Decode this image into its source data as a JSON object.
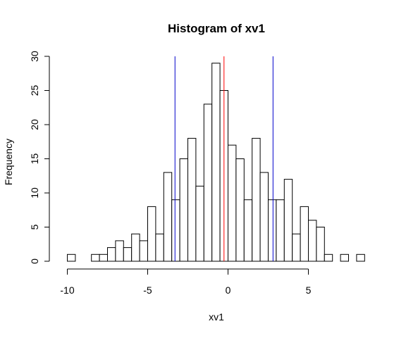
{
  "chart_data": {
    "type": "bar",
    "title": "Histogram of xv1",
    "xlabel": "xv1",
    "ylabel": "Frequency",
    "bin_width": 0.5,
    "bin_start": -10.0,
    "counts": [
      1,
      0,
      0,
      1,
      1,
      2,
      3,
      2,
      4,
      3,
      8,
      4,
      13,
      9,
      15,
      18,
      11,
      23,
      29,
      25,
      17,
      15,
      9,
      18,
      13,
      9,
      9,
      12,
      4,
      8,
      6,
      5,
      1,
      0,
      1,
      0,
      1
    ],
    "xlim": [
      -10,
      8.5
    ],
    "ylim": [
      0,
      30
    ],
    "x_ticks": [
      -10,
      -5,
      0,
      5
    ],
    "x_tick_labels": [
      "-10",
      "-5",
      "0",
      "5"
    ],
    "y_ticks": [
      0,
      5,
      10,
      15,
      20,
      25,
      30
    ],
    "y_tick_labels": [
      "0",
      "5",
      "10",
      "15",
      "20",
      "25",
      "30"
    ],
    "vlines": [
      {
        "x": -3.3,
        "color": "#0000cc",
        "kind": "lower"
      },
      {
        "x": -0.25,
        "color": "#ff0000",
        "kind": "mean"
      },
      {
        "x": 2.8,
        "color": "#0000cc",
        "kind": "upper"
      }
    ],
    "grid": false,
    "legend": "none",
    "bar_fill": "#ffffff",
    "bar_stroke": "#000000"
  }
}
